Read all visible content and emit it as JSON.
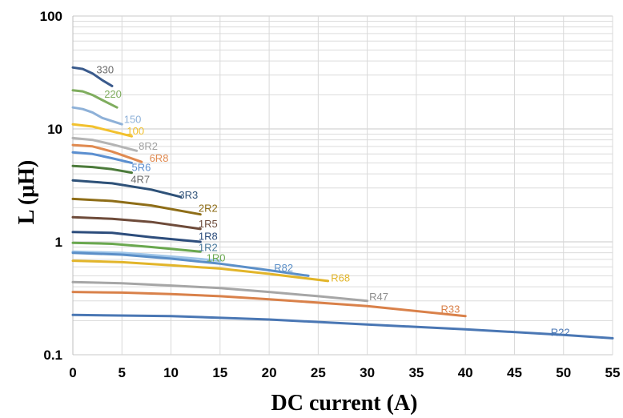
{
  "chart_data": {
    "type": "line",
    "xlabel": "DC current (A)",
    "ylabel": "L (μH)",
    "xlim": [
      0,
      55
    ],
    "ylim": [
      0.1,
      100
    ],
    "yscale": "log",
    "grid": true,
    "x_ticks": [
      "0",
      "5",
      "10",
      "15",
      "20",
      "25",
      "30",
      "35",
      "40",
      "45",
      "50",
      "55"
    ],
    "y_ticks": [
      "0.1",
      "1",
      "10",
      "100"
    ],
    "series": [
      {
        "name": "330",
        "color": "#3a5a8c",
        "points": [
          [
            0,
            35
          ],
          [
            1,
            34
          ],
          [
            2,
            31
          ],
          [
            3,
            27
          ],
          [
            4,
            24
          ]
        ]
      },
      {
        "name": "220",
        "color": "#7fad5e",
        "points": [
          [
            0,
            22
          ],
          [
            1,
            21.5
          ],
          [
            2,
            20
          ],
          [
            3,
            18
          ],
          [
            4.5,
            15.5
          ]
        ]
      },
      {
        "name": "150",
        "color": "#8eb1d8",
        "points": [
          [
            0,
            15.5
          ],
          [
            1,
            15
          ],
          [
            2,
            14
          ],
          [
            3,
            12.5
          ],
          [
            5,
            11
          ]
        ]
      },
      {
        "name": "100",
        "color": "#f2c12e",
        "points": [
          [
            0,
            11
          ],
          [
            2,
            10.5
          ],
          [
            4,
            9.5
          ],
          [
            6,
            8.6
          ]
        ]
      },
      {
        "name": "8R2",
        "color": "#b4b4b4",
        "points": [
          [
            0,
            8.3
          ],
          [
            2,
            8
          ],
          [
            4,
            7.3
          ],
          [
            6.5,
            6.4
          ]
        ]
      },
      {
        "name": "6R8",
        "color": "#e08a50",
        "points": [
          [
            0,
            7.2
          ],
          [
            2,
            7
          ],
          [
            4,
            6.3
          ],
          [
            7,
            5.1
          ]
        ]
      },
      {
        "name": "5R6",
        "color": "#5b8fd0",
        "points": [
          [
            0,
            6.2
          ],
          [
            2,
            6
          ],
          [
            4,
            5.5
          ],
          [
            6,
            5
          ]
        ]
      },
      {
        "name": "4R7",
        "color": "#4b7a3a",
        "points": [
          [
            0,
            4.7
          ],
          [
            2,
            4.6
          ],
          [
            4,
            4.4
          ],
          [
            6,
            4.1
          ]
        ]
      },
      {
        "name": "3R3",
        "color": "#2e5178",
        "points": [
          [
            0,
            3.5
          ],
          [
            4,
            3.3
          ],
          [
            8,
            2.9
          ],
          [
            11,
            2.5
          ]
        ]
      },
      {
        "name": "2R2",
        "color": "#8e6d17",
        "points": [
          [
            0,
            2.4
          ],
          [
            4,
            2.3
          ],
          [
            8,
            2.1
          ],
          [
            13,
            1.75
          ]
        ]
      },
      {
        "name": "1R5",
        "color": "#6e4b3a",
        "points": [
          [
            0,
            1.65
          ],
          [
            4,
            1.6
          ],
          [
            8,
            1.5
          ],
          [
            13,
            1.3
          ]
        ]
      },
      {
        "name": "1R8",
        "color": "#2d4d7c",
        "points": [
          [
            0,
            1.22
          ],
          [
            4,
            1.2
          ],
          [
            8,
            1.1
          ],
          [
            13,
            1.0
          ]
        ]
      },
      {
        "name": "1R2",
        "color": "#6aa84f",
        "points": [
          [
            0,
            0.98
          ],
          [
            4,
            0.96
          ],
          [
            8,
            0.9
          ],
          [
            13,
            0.82
          ]
        ]
      },
      {
        "name": "1R0",
        "color": "#9fc5e8",
        "points": [
          [
            0,
            0.82
          ],
          [
            5,
            0.8
          ],
          [
            10,
            0.74
          ],
          [
            15,
            0.68
          ]
        ]
      },
      {
        "name": "R82",
        "color": "#5b8fc8",
        "points": [
          [
            0,
            0.8
          ],
          [
            5,
            0.77
          ],
          [
            10,
            0.71
          ],
          [
            15,
            0.64
          ],
          [
            20,
            0.56
          ],
          [
            24,
            0.5
          ]
        ]
      },
      {
        "name": "R68",
        "color": "#e2b52a",
        "points": [
          [
            0,
            0.68
          ],
          [
            5,
            0.66
          ],
          [
            10,
            0.62
          ],
          [
            15,
            0.58
          ],
          [
            20,
            0.52
          ],
          [
            26,
            0.45
          ]
        ]
      },
      {
        "name": "R47",
        "color": "#a6a6a6",
        "points": [
          [
            0,
            0.44
          ],
          [
            5,
            0.43
          ],
          [
            10,
            0.41
          ],
          [
            15,
            0.39
          ],
          [
            20,
            0.36
          ],
          [
            25,
            0.33
          ],
          [
            30,
            0.3
          ]
        ]
      },
      {
        "name": "R33",
        "color": "#d9814a",
        "points": [
          [
            0,
            0.36
          ],
          [
            5,
            0.355
          ],
          [
            10,
            0.345
          ],
          [
            15,
            0.33
          ],
          [
            20,
            0.31
          ],
          [
            30,
            0.27
          ],
          [
            40,
            0.22
          ]
        ]
      },
      {
        "name": "R22",
        "color": "#4a77b4",
        "points": [
          [
            0,
            0.225
          ],
          [
            10,
            0.22
          ],
          [
            20,
            0.205
          ],
          [
            30,
            0.185
          ],
          [
            40,
            0.168
          ],
          [
            50,
            0.15
          ],
          [
            55,
            0.14
          ]
        ]
      }
    ],
    "labels": [
      {
        "text": "330",
        "x": 2.4,
        "y": 33,
        "color": "#6b6b6b"
      },
      {
        "text": "220",
        "x": 3.2,
        "y": 20,
        "color": "#7fad5e"
      },
      {
        "text": "150",
        "x": 5.2,
        "y": 12.0,
        "color": "#8eb1d8"
      },
      {
        "text": "100",
        "x": 5.5,
        "y": 9.4,
        "color": "#f2c12e"
      },
      {
        "text": "8R2",
        "x": 6.7,
        "y": 6.9,
        "color": "#a0a0a0"
      },
      {
        "text": "6R8",
        "x": 7.8,
        "y": 5.4,
        "color": "#e08a50"
      },
      {
        "text": "5R6",
        "x": 6.0,
        "y": 4.5,
        "color": "#5b8fd0"
      },
      {
        "text": "4R7",
        "x": 5.9,
        "y": 3.5,
        "color": "#6b6b6b"
      },
      {
        "text": "3R3",
        "x": 10.8,
        "y": 2.55,
        "color": "#2e5178"
      },
      {
        "text": "2R2",
        "x": 12.8,
        "y": 1.95,
        "color": "#8e6d17"
      },
      {
        "text": "1R5",
        "x": 12.8,
        "y": 1.42,
        "color": "#6e4b3a"
      },
      {
        "text": "1R8",
        "x": 12.8,
        "y": 1.1,
        "color": "#2d4d7c"
      },
      {
        "text": "1R2",
        "x": 12.8,
        "y": 0.88,
        "color": "#4a7a9e"
      },
      {
        "text": "1R0",
        "x": 13.6,
        "y": 0.71,
        "color": "#6aa84f"
      },
      {
        "text": "R82",
        "x": 20.5,
        "y": 0.58,
        "color": "#5b8fc8"
      },
      {
        "text": "R68",
        "x": 26.3,
        "y": 0.47,
        "color": "#e2b52a"
      },
      {
        "text": "R47",
        "x": 30.2,
        "y": 0.32,
        "color": "#8e8e8e"
      },
      {
        "text": "R33",
        "x": 37.5,
        "y": 0.25,
        "color": "#d9814a"
      },
      {
        "text": "R22",
        "x": 48.7,
        "y": 0.155,
        "color": "#4a77b4"
      }
    ]
  }
}
